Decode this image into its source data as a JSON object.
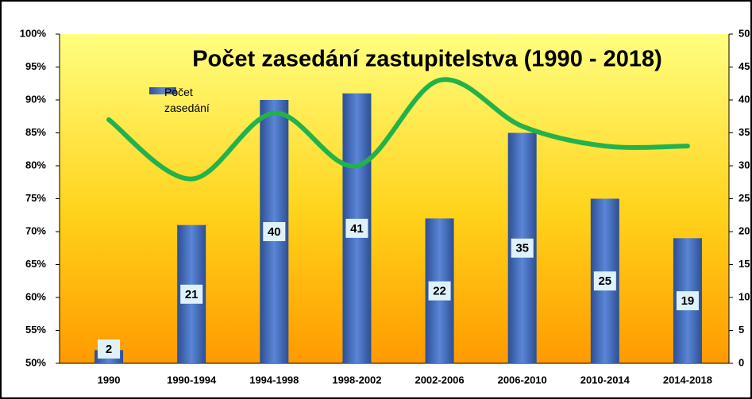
{
  "chart_data": {
    "type": "bar",
    "title": "Počet zasedání zastupitelstva (1990 - 2018)",
    "categories": [
      "1990",
      "1990-1994",
      "1994-1998",
      "1998-2002",
      "2002-2006",
      "2006-2010",
      "2010-2014",
      "2014-2018"
    ],
    "series": [
      {
        "name": "Počet zasedání",
        "type": "bar",
        "axis": "y2",
        "color": "#4472c4",
        "values": [
          2,
          21,
          40,
          41,
          22,
          35,
          25,
          19
        ]
      },
      {
        "type": "line",
        "color": "#22b24c",
        "values": [
          87,
          78,
          88,
          80,
          93,
          86,
          83,
          83
        ]
      }
    ],
    "ylim": [
      50,
      100
    ],
    "yticks": [
      {
        "value": 50,
        "label": "50%"
      },
      {
        "value": 55,
        "label": "55%"
      },
      {
        "value": 60,
        "label": "60%"
      },
      {
        "value": 65,
        "label": "65%"
      },
      {
        "value": 70,
        "label": "70%"
      },
      {
        "value": 75,
        "label": "75%"
      },
      {
        "value": 80,
        "label": "80%"
      },
      {
        "value": 85,
        "label": "85%"
      },
      {
        "value": 90,
        "label": "90%"
      },
      {
        "value": 95,
        "label": "95%"
      },
      {
        "value": 100,
        "label": "100%"
      }
    ],
    "y2lim": [
      0,
      50
    ],
    "y2ticks": [
      0,
      5,
      10,
      15,
      20,
      25,
      30,
      35,
      40,
      45,
      50
    ],
    "legend": "top-left"
  }
}
